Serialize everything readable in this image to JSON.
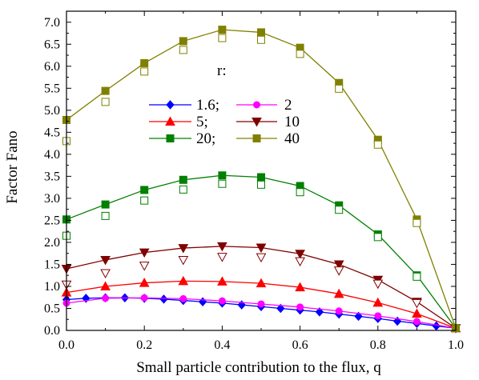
{
  "chart_data": {
    "type": "line",
    "title": "",
    "xlabel": "Small particle contribution to the flux, q",
    "ylabel": "Factor Fano",
    "xlim": [
      0.0,
      1.0
    ],
    "ylim": [
      0.0,
      7.25
    ],
    "x_ticks": [
      0.0,
      0.2,
      0.4,
      0.6,
      0.8,
      1.0
    ],
    "x_tick_labels": [
      "0.0",
      "0.2",
      "0.4",
      "0.6",
      "0.8",
      "1.0"
    ],
    "y_ticks": [
      0.0,
      0.5,
      1.0,
      1.5,
      2.0,
      2.5,
      3.0,
      3.5,
      4.0,
      4.5,
      5.0,
      5.5,
      6.0,
      6.5,
      7.0
    ],
    "y_tick_labels": [
      "0.0",
      "0.5",
      "1.0",
      "1.5",
      "2.0",
      "2.5",
      "3.0",
      "3.5",
      "4.0",
      "4.5",
      "5.0",
      "5.5",
      "6.0",
      "6.5",
      "7.0"
    ],
    "grid": false,
    "legend": {
      "title": "r:",
      "position": "upper-center",
      "entries": [
        {
          "label": "1.6;",
          "series_index": 0
        },
        {
          "label": "2",
          "series_index": 1
        },
        {
          "label": "5;",
          "series_index": 2
        },
        {
          "label": "10",
          "series_index": 3
        },
        {
          "label": "20;",
          "series_index": 4
        },
        {
          "label": "40",
          "series_index": 5
        }
      ]
    },
    "series": [
      {
        "name": "1.6",
        "color": "#0000ff",
        "marker": "diamond",
        "line_x": [
          0.0,
          0.05,
          0.1,
          0.15,
          0.2,
          0.25,
          0.3,
          0.35,
          0.4,
          0.45,
          0.5,
          0.55,
          0.6,
          0.65,
          0.7,
          0.75,
          0.8,
          0.85,
          0.9,
          0.95,
          1.0
        ],
        "line_y": [
          0.7,
          0.73,
          0.74,
          0.74,
          0.73,
          0.71,
          0.68,
          0.65,
          0.62,
          0.58,
          0.54,
          0.5,
          0.46,
          0.42,
          0.37,
          0.32,
          0.27,
          0.21,
          0.16,
          0.1,
          0.05
        ],
        "hollow_x": [],
        "hollow_y": []
      },
      {
        "name": "2",
        "color": "#ff00ff",
        "marker": "circle",
        "line_x": [
          0.0,
          0.1,
          0.2,
          0.3,
          0.4,
          0.5,
          0.6,
          0.7,
          0.8,
          0.9,
          1.0
        ],
        "line_y": [
          0.62,
          0.73,
          0.74,
          0.72,
          0.67,
          0.6,
          0.53,
          0.44,
          0.33,
          0.2,
          0.05
        ],
        "hollow_x": [],
        "hollow_y": []
      },
      {
        "name": "5",
        "color": "#ff0000",
        "marker": "triangle-up",
        "line_x": [
          0.0,
          0.1,
          0.2,
          0.3,
          0.4,
          0.5,
          0.6,
          0.7,
          0.8,
          0.9,
          1.0
        ],
        "line_y": [
          0.86,
          1.0,
          1.08,
          1.12,
          1.11,
          1.07,
          0.98,
          0.83,
          0.63,
          0.38,
          0.05
        ],
        "hollow_x": [],
        "hollow_y": []
      },
      {
        "name": "10",
        "color": "#800000",
        "marker": "triangle-down",
        "line_x": [
          0.0,
          0.1,
          0.2,
          0.3,
          0.4,
          0.5,
          0.6,
          0.7,
          0.8,
          0.9,
          1.0
        ],
        "line_y": [
          1.4,
          1.6,
          1.77,
          1.87,
          1.91,
          1.88,
          1.74,
          1.5,
          1.15,
          0.65,
          0.05
        ],
        "hollow_x": [
          0.0,
          0.1,
          0.2,
          0.3,
          0.4,
          0.5,
          0.6,
          0.7,
          0.8,
          0.9
        ],
        "hollow_y": [
          1.04,
          1.3,
          1.47,
          1.6,
          1.67,
          1.66,
          1.57,
          1.36,
          1.06,
          0.62
        ]
      },
      {
        "name": "20",
        "color": "#008000",
        "marker": "square",
        "line_x": [
          0.0,
          0.1,
          0.2,
          0.3,
          0.4,
          0.5,
          0.6,
          0.7,
          0.8,
          0.9,
          1.0
        ],
        "line_y": [
          2.52,
          2.86,
          3.19,
          3.42,
          3.52,
          3.48,
          3.28,
          2.84,
          2.18,
          1.25,
          0.05
        ],
        "hollow_x": [
          0.0,
          0.1,
          0.2,
          0.3,
          0.4,
          0.5,
          0.6,
          0.7,
          0.8,
          0.9
        ],
        "hollow_y": [
          2.15,
          2.6,
          2.95,
          3.2,
          3.33,
          3.31,
          3.14,
          2.74,
          2.12,
          1.22
        ]
      },
      {
        "name": "40",
        "color": "#808000",
        "marker": "square",
        "line_x": [
          0.0,
          0.1,
          0.2,
          0.3,
          0.4,
          0.5,
          0.6,
          0.7,
          0.8,
          0.9,
          1.0
        ],
        "line_y": [
          4.78,
          5.44,
          6.07,
          6.57,
          6.83,
          6.77,
          6.42,
          5.62,
          4.33,
          2.52,
          0.05
        ],
        "hollow_x": [
          0.0,
          0.1,
          0.2,
          0.3,
          0.4,
          0.5,
          0.6,
          0.7,
          0.8,
          0.9
        ],
        "hollow_y": [
          4.3,
          5.19,
          5.88,
          6.37,
          6.64,
          6.6,
          6.28,
          5.49,
          4.22,
          2.44
        ]
      }
    ]
  }
}
